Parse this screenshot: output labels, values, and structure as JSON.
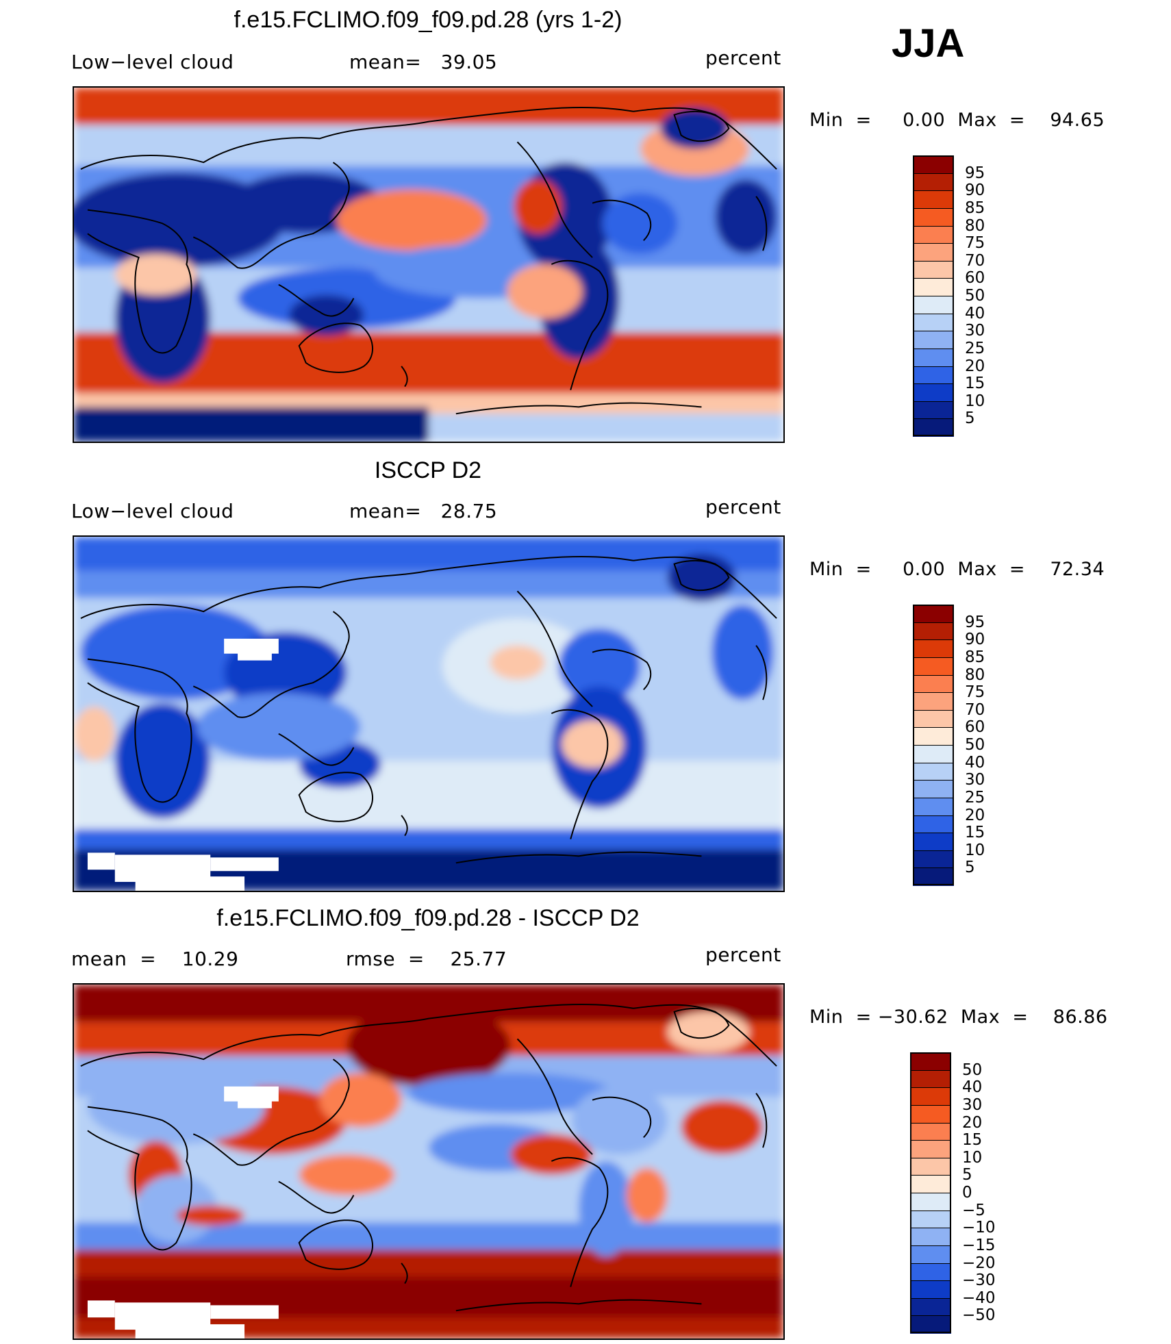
{
  "season": "JJA",
  "panels": [
    {
      "title": "f.e15.FCLIMO.f09_f09.pd.28 (yrs 1-2)",
      "variable": "Low−level cloud",
      "stat_left": "",
      "stat_mid": "mean=   39.05",
      "units": "percent",
      "minmax": "Min  =     0.00  Max  =    94.65",
      "colorbar_labels": [
        "95",
        "90",
        "85",
        "80",
        "75",
        "70",
        "60",
        "50",
        "40",
        "30",
        "25",
        "20",
        "15",
        "10",
        "5"
      ],
      "field": "model"
    },
    {
      "title": "ISCCP D2",
      "variable": "Low−level cloud",
      "stat_left": "",
      "stat_mid": "mean=   28.75",
      "units": "percent",
      "minmax": "Min  =     0.00  Max  =    72.34",
      "colorbar_labels": [
        "95",
        "90",
        "85",
        "80",
        "75",
        "70",
        "60",
        "50",
        "40",
        "30",
        "25",
        "20",
        "15",
        "10",
        "5"
      ],
      "field": "obs"
    },
    {
      "title": "f.e15.FCLIMO.f09_f09.pd.28 - ISCCP D2",
      "variable": "",
      "stat_left": "mean  =    10.29",
      "stat_mid": "rmse  =    25.77",
      "units": "percent",
      "minmax": "Min  = −30.62  Max  =    86.86",
      "colorbar_labels": [
        "50",
        "40",
        "30",
        "20",
        "15",
        "10",
        "5",
        "0",
        "−5",
        "−10",
        "−15",
        "−20",
        "−30",
        "−40",
        "−50"
      ],
      "field": "diff"
    }
  ],
  "colors": {
    "scale_top_to_bottom": [
      "#8b0000",
      "#b41f04",
      "#dc3a08",
      "#f55b22",
      "#fb7f50",
      "#fca37d",
      "#fcc6a8",
      "#feebd9",
      "#deebf7",
      "#b7d1f6",
      "#8fb2f3",
      "#5f8ef0",
      "#2f63e6",
      "#0e3cc7",
      "#0a2596",
      "#061a7a"
    ],
    "missing": "#ffffff",
    "coastline": "#000000"
  }
}
